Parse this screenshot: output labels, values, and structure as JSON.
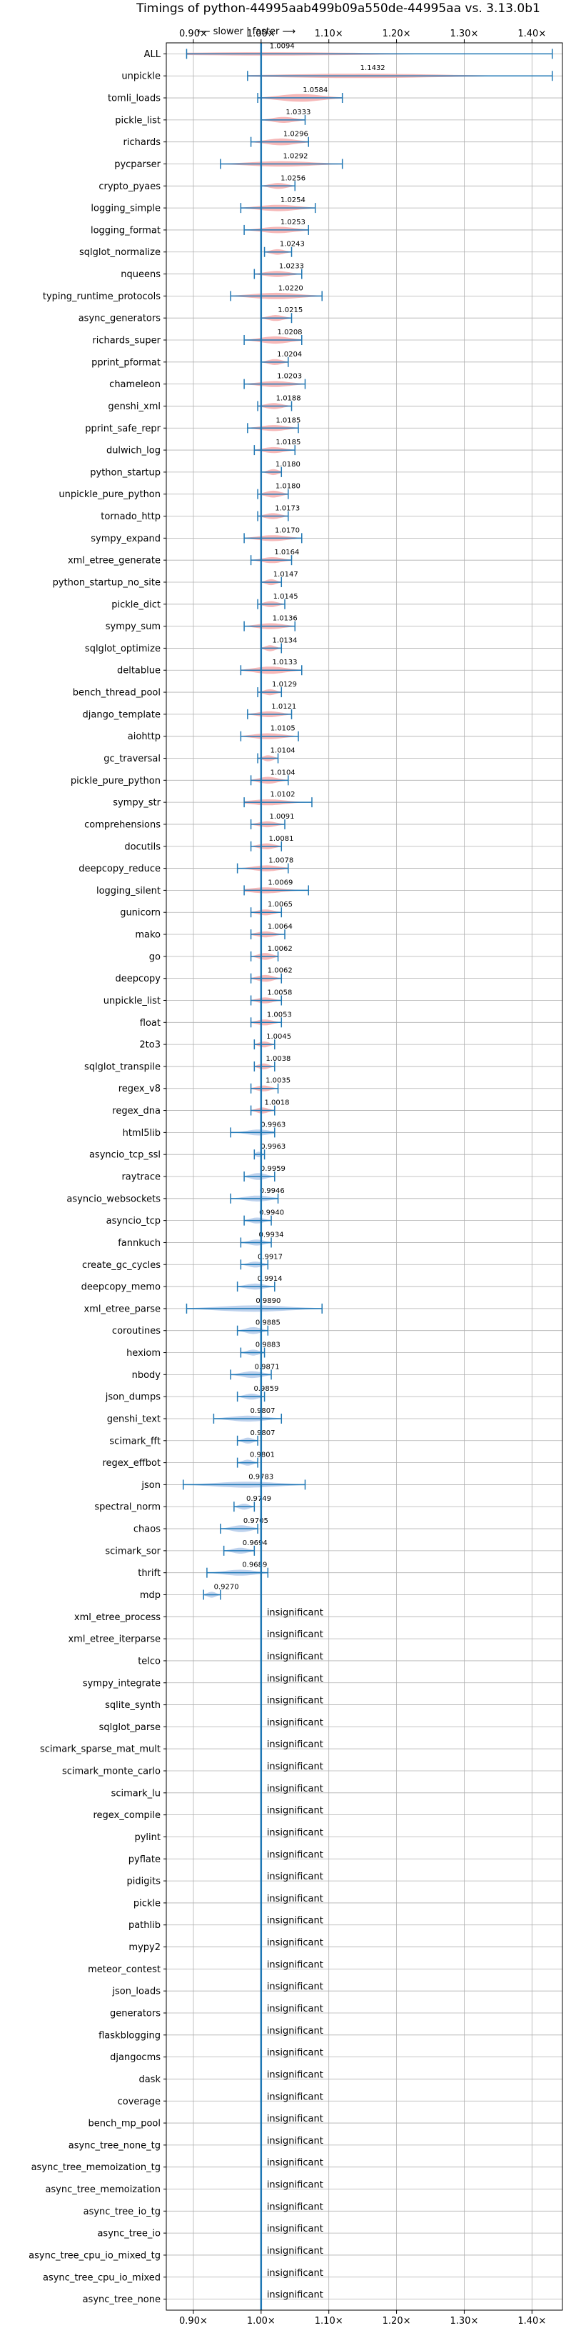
{
  "chart_data": {
    "type": "violin",
    "title": "Timings of python-44995aab499b09a550de-44995aa vs. 3.13.0b1",
    "direction_label": "⟵ slower | faster ⟶",
    "xlim": [
      0.86,
      1.445
    ],
    "x_ticks": [
      0.9,
      1.0,
      1.1,
      1.2,
      1.3,
      1.4
    ],
    "x_tick_labels": [
      "0.90×",
      "1.00×",
      "1.10×",
      "1.20×",
      "1.30×",
      "1.40×"
    ],
    "grid": true,
    "reference_line": 1.0,
    "colors": {
      "faster": "#aec7e8",
      "slower": "#f4a6a6",
      "line": "#1f77b4",
      "grid": "#b0b0b0"
    },
    "insignificant_text": "insignificant",
    "benchmarks": [
      {
        "name": "ALL",
        "value": 1.0094,
        "label": "1.0094",
        "lo": 0.89,
        "hi": 1.43,
        "w": 0.022
      },
      {
        "name": "unpickle",
        "value": 1.1432,
        "label": "1.1432",
        "lo": 0.98,
        "hi": 1.43,
        "w": 0.07
      },
      {
        "name": "tomli_loads",
        "value": 1.0584,
        "label": "1.0584",
        "lo": 0.995,
        "hi": 1.12,
        "w": 0.22
      },
      {
        "name": "pickle_list",
        "value": 1.0333,
        "label": "1.0333",
        "lo": 1.0,
        "hi": 1.065,
        "w": 0.14
      },
      {
        "name": "richards",
        "value": 1.0296,
        "label": "1.0296",
        "lo": 0.985,
        "hi": 1.07,
        "w": 0.18
      },
      {
        "name": "pycparser",
        "value": 1.0292,
        "label": "1.0292",
        "lo": 0.94,
        "hi": 1.12,
        "w": 0.12
      },
      {
        "name": "crypto_pyaes",
        "value": 1.0256,
        "label": "1.0256",
        "lo": 1.0,
        "hi": 1.05,
        "w": 0.14
      },
      {
        "name": "logging_simple",
        "value": 1.0254,
        "label": "1.0254",
        "lo": 0.97,
        "hi": 1.08,
        "w": 0.16
      },
      {
        "name": "logging_format",
        "value": 1.0253,
        "label": "1.0253",
        "lo": 0.975,
        "hi": 1.07,
        "w": 0.16
      },
      {
        "name": "sqlglot_normalize",
        "value": 1.0243,
        "label": "1.0243",
        "lo": 1.005,
        "hi": 1.045,
        "w": 0.12
      },
      {
        "name": "nqueens",
        "value": 1.0233,
        "label": "1.0233",
        "lo": 0.99,
        "hi": 1.06,
        "w": 0.14
      },
      {
        "name": "typing_runtime_protocols",
        "value": 1.022,
        "label": "1.0220",
        "lo": 0.955,
        "hi": 1.09,
        "w": 0.16
      },
      {
        "name": "async_generators",
        "value": 1.0215,
        "label": "1.0215",
        "lo": 1.0,
        "hi": 1.045,
        "w": 0.14
      },
      {
        "name": "richards_super",
        "value": 1.0208,
        "label": "1.0208",
        "lo": 0.975,
        "hi": 1.06,
        "w": 0.2
      },
      {
        "name": "pprint_pformat",
        "value": 1.0204,
        "label": "1.0204",
        "lo": 1.0,
        "hi": 1.04,
        "w": 0.14
      },
      {
        "name": "chameleon",
        "value": 1.0203,
        "label": "1.0203",
        "lo": 0.975,
        "hi": 1.065,
        "w": 0.14
      },
      {
        "name": "genshi_xml",
        "value": 1.0188,
        "label": "1.0188",
        "lo": 0.995,
        "hi": 1.045,
        "w": 0.14
      },
      {
        "name": "pprint_safe_repr",
        "value": 1.0185,
        "label": "1.0185",
        "lo": 0.98,
        "hi": 1.055,
        "w": 0.14
      },
      {
        "name": "dulwich_log",
        "value": 1.0185,
        "label": "1.0185",
        "lo": 0.99,
        "hi": 1.05,
        "w": 0.14
      },
      {
        "name": "python_startup",
        "value": 1.018,
        "label": "1.0180",
        "lo": 1.0,
        "hi": 1.03,
        "w": 0.14
      },
      {
        "name": "unpickle_pure_python",
        "value": 1.018,
        "label": "1.0180",
        "lo": 0.995,
        "hi": 1.04,
        "w": 0.18
      },
      {
        "name": "tornado_http",
        "value": 1.0173,
        "label": "1.0173",
        "lo": 0.995,
        "hi": 1.04,
        "w": 0.14
      },
      {
        "name": "sympy_expand",
        "value": 1.017,
        "label": "1.0170",
        "lo": 0.975,
        "hi": 1.06,
        "w": 0.14
      },
      {
        "name": "xml_etree_generate",
        "value": 1.0164,
        "label": "1.0164",
        "lo": 0.985,
        "hi": 1.045,
        "w": 0.14
      },
      {
        "name": "python_startup_no_site",
        "value": 1.0147,
        "label": "1.0147",
        "lo": 1.0,
        "hi": 1.03,
        "w": 0.14
      },
      {
        "name": "pickle_dict",
        "value": 1.0145,
        "label": "1.0145",
        "lo": 0.995,
        "hi": 1.035,
        "w": 0.14
      },
      {
        "name": "sympy_sum",
        "value": 1.0136,
        "label": "1.0136",
        "lo": 0.975,
        "hi": 1.05,
        "w": 0.14
      },
      {
        "name": "sqlglot_optimize",
        "value": 1.0134,
        "label": "1.0134",
        "lo": 1.0,
        "hi": 1.03,
        "w": 0.14
      },
      {
        "name": "deltablue",
        "value": 1.0133,
        "label": "1.0133",
        "lo": 0.97,
        "hi": 1.06,
        "w": 0.2
      },
      {
        "name": "bench_thread_pool",
        "value": 1.0129,
        "label": "1.0129",
        "lo": 0.995,
        "hi": 1.03,
        "w": 0.14
      },
      {
        "name": "django_template",
        "value": 1.0121,
        "label": "1.0121",
        "lo": 0.98,
        "hi": 1.045,
        "w": 0.14
      },
      {
        "name": "aiohttp",
        "value": 1.0105,
        "label": "1.0105",
        "lo": 0.97,
        "hi": 1.055,
        "w": 0.14
      },
      {
        "name": "gc_traversal",
        "value": 1.0104,
        "label": "1.0104",
        "lo": 0.995,
        "hi": 1.025,
        "w": 0.14
      },
      {
        "name": "pickle_pure_python",
        "value": 1.0104,
        "label": "1.0104",
        "lo": 0.985,
        "hi": 1.04,
        "w": 0.18
      },
      {
        "name": "sympy_str",
        "value": 1.0102,
        "label": "1.0102",
        "lo": 0.975,
        "hi": 1.075,
        "w": 0.14
      },
      {
        "name": "comprehensions",
        "value": 1.0091,
        "label": "1.0091",
        "lo": 0.985,
        "hi": 1.035,
        "w": 0.14
      },
      {
        "name": "docutils",
        "value": 1.0081,
        "label": "1.0081",
        "lo": 0.985,
        "hi": 1.03,
        "w": 0.14
      },
      {
        "name": "deepcopy_reduce",
        "value": 1.0078,
        "label": "1.0078",
        "lo": 0.965,
        "hi": 1.04,
        "w": 0.14
      },
      {
        "name": "logging_silent",
        "value": 1.0069,
        "label": "1.0069",
        "lo": 0.975,
        "hi": 1.07,
        "w": 0.14
      },
      {
        "name": "gunicorn",
        "value": 1.0065,
        "label": "1.0065",
        "lo": 0.985,
        "hi": 1.03,
        "w": 0.14
      },
      {
        "name": "mako",
        "value": 1.0064,
        "label": "1.0064",
        "lo": 0.985,
        "hi": 1.035,
        "w": 0.14
      },
      {
        "name": "go",
        "value": 1.0062,
        "label": "1.0062",
        "lo": 0.985,
        "hi": 1.025,
        "w": 0.18
      },
      {
        "name": "deepcopy",
        "value": 1.0062,
        "label": "1.0062",
        "lo": 0.985,
        "hi": 1.03,
        "w": 0.18
      },
      {
        "name": "unpickle_list",
        "value": 1.0058,
        "label": "1.0058",
        "lo": 0.985,
        "hi": 1.03,
        "w": 0.14
      },
      {
        "name": "float",
        "value": 1.0053,
        "label": "1.0053",
        "lo": 0.985,
        "hi": 1.03,
        "w": 0.14
      },
      {
        "name": "2to3",
        "value": 1.0045,
        "label": "1.0045",
        "lo": 0.99,
        "hi": 1.02,
        "w": 0.14
      },
      {
        "name": "sqlglot_transpile",
        "value": 1.0038,
        "label": "1.0038",
        "lo": 0.99,
        "hi": 1.02,
        "w": 0.14
      },
      {
        "name": "regex_v8",
        "value": 1.0035,
        "label": "1.0035",
        "lo": 0.985,
        "hi": 1.025,
        "w": 0.14
      },
      {
        "name": "regex_dna",
        "value": 1.0018,
        "label": "1.0018",
        "lo": 0.985,
        "hi": 1.02,
        "w": 0.14
      },
      {
        "name": "html5lib",
        "value": 0.9963,
        "label": "0.9963",
        "lo": 0.955,
        "hi": 1.02,
        "w": 0.14
      },
      {
        "name": "asyncio_tcp_ssl",
        "value": 0.9963,
        "label": "0.9963",
        "lo": 0.99,
        "hi": 1.005,
        "w": 0.12
      },
      {
        "name": "raytrace",
        "value": 0.9959,
        "label": "0.9959",
        "lo": 0.975,
        "hi": 1.02,
        "w": 0.18
      },
      {
        "name": "asyncio_websockets",
        "value": 0.9946,
        "label": "0.9946",
        "lo": 0.955,
        "hi": 1.025,
        "w": 0.14
      },
      {
        "name": "asyncio_tcp",
        "value": 0.994,
        "label": "0.9940",
        "lo": 0.975,
        "hi": 1.015,
        "w": 0.14
      },
      {
        "name": "fannkuch",
        "value": 0.9934,
        "label": "0.9934",
        "lo": 0.97,
        "hi": 1.015,
        "w": 0.14
      },
      {
        "name": "create_gc_cycles",
        "value": 0.9917,
        "label": "0.9917",
        "lo": 0.97,
        "hi": 1.01,
        "w": 0.14
      },
      {
        "name": "deepcopy_memo",
        "value": 0.9914,
        "label": "0.9914",
        "lo": 0.965,
        "hi": 1.02,
        "w": 0.14
      },
      {
        "name": "xml_etree_parse",
        "value": 0.989,
        "label": "0.9890",
        "lo": 0.89,
        "hi": 1.09,
        "w": 0.16
      },
      {
        "name": "coroutines",
        "value": 0.9885,
        "label": "0.9885",
        "lo": 0.965,
        "hi": 1.01,
        "w": 0.18
      },
      {
        "name": "hexiom",
        "value": 0.9883,
        "label": "0.9883",
        "lo": 0.97,
        "hi": 1.005,
        "w": 0.14
      },
      {
        "name": "nbody",
        "value": 0.9871,
        "label": "0.9871",
        "lo": 0.955,
        "hi": 1.015,
        "w": 0.18
      },
      {
        "name": "json_dumps",
        "value": 0.9859,
        "label": "0.9859",
        "lo": 0.965,
        "hi": 1.005,
        "w": 0.14
      },
      {
        "name": "genshi_text",
        "value": 0.9807,
        "label": "0.9807",
        "lo": 0.93,
        "hi": 1.03,
        "w": 0.14
      },
      {
        "name": "scimark_fft",
        "value": 0.9807,
        "label": "0.9807",
        "lo": 0.965,
        "hi": 0.995,
        "w": 0.14
      },
      {
        "name": "regex_effbot",
        "value": 0.9801,
        "label": "0.9801",
        "lo": 0.965,
        "hi": 0.995,
        "w": 0.14
      },
      {
        "name": "json",
        "value": 0.9783,
        "label": "0.9783",
        "lo": 0.885,
        "hi": 1.065,
        "w": 0.14
      },
      {
        "name": "spectral_norm",
        "value": 0.9749,
        "label": "0.9749",
        "lo": 0.96,
        "hi": 0.99,
        "w": 0.14
      },
      {
        "name": "chaos",
        "value": 0.9705,
        "label": "0.9705",
        "lo": 0.94,
        "hi": 0.995,
        "w": 0.18
      },
      {
        "name": "scimark_sor",
        "value": 0.9694,
        "label": "0.9694",
        "lo": 0.945,
        "hi": 0.99,
        "w": 0.14
      },
      {
        "name": "thrift",
        "value": 0.9689,
        "label": "0.9689",
        "lo": 0.92,
        "hi": 1.01,
        "w": 0.14
      },
      {
        "name": "mdp",
        "value": 0.927,
        "label": "0.9270",
        "lo": 0.915,
        "hi": 0.94,
        "w": 0.14
      },
      {
        "name": "xml_etree_process",
        "value": null,
        "label": "insignificant"
      },
      {
        "name": "xml_etree_iterparse",
        "value": null,
        "label": "insignificant"
      },
      {
        "name": "telco",
        "value": null,
        "label": "insignificant"
      },
      {
        "name": "sympy_integrate",
        "value": null,
        "label": "insignificant"
      },
      {
        "name": "sqlite_synth",
        "value": null,
        "label": "insignificant"
      },
      {
        "name": "sqlglot_parse",
        "value": null,
        "label": "insignificant"
      },
      {
        "name": "scimark_sparse_mat_mult",
        "value": null,
        "label": "insignificant"
      },
      {
        "name": "scimark_monte_carlo",
        "value": null,
        "label": "insignificant"
      },
      {
        "name": "scimark_lu",
        "value": null,
        "label": "insignificant"
      },
      {
        "name": "regex_compile",
        "value": null,
        "label": "insignificant"
      },
      {
        "name": "pylint",
        "value": null,
        "label": "insignificant"
      },
      {
        "name": "pyflate",
        "value": null,
        "label": "insignificant"
      },
      {
        "name": "pidigits",
        "value": null,
        "label": "insignificant"
      },
      {
        "name": "pickle",
        "value": null,
        "label": "insignificant"
      },
      {
        "name": "pathlib",
        "value": null,
        "label": "insignificant"
      },
      {
        "name": "mypy2",
        "value": null,
        "label": "insignificant"
      },
      {
        "name": "meteor_contest",
        "value": null,
        "label": "insignificant"
      },
      {
        "name": "json_loads",
        "value": null,
        "label": "insignificant"
      },
      {
        "name": "generators",
        "value": null,
        "label": "insignificant"
      },
      {
        "name": "flaskblogging",
        "value": null,
        "label": "insignificant"
      },
      {
        "name": "djangocms",
        "value": null,
        "label": "insignificant"
      },
      {
        "name": "dask",
        "value": null,
        "label": "insignificant"
      },
      {
        "name": "coverage",
        "value": null,
        "label": "insignificant"
      },
      {
        "name": "bench_mp_pool",
        "value": null,
        "label": "insignificant"
      },
      {
        "name": "async_tree_none_tg",
        "value": null,
        "label": "insignificant"
      },
      {
        "name": "async_tree_memoization_tg",
        "value": null,
        "label": "insignificant"
      },
      {
        "name": "async_tree_memoization",
        "value": null,
        "label": "insignificant"
      },
      {
        "name": "async_tree_io_tg",
        "value": null,
        "label": "insignificant"
      },
      {
        "name": "async_tree_io",
        "value": null,
        "label": "insignificant"
      },
      {
        "name": "async_tree_cpu_io_mixed_tg",
        "value": null,
        "label": "insignificant"
      },
      {
        "name": "async_tree_cpu_io_mixed",
        "value": null,
        "label": "insignificant"
      },
      {
        "name": "async_tree_none",
        "value": null,
        "label": "insignificant"
      }
    ]
  }
}
